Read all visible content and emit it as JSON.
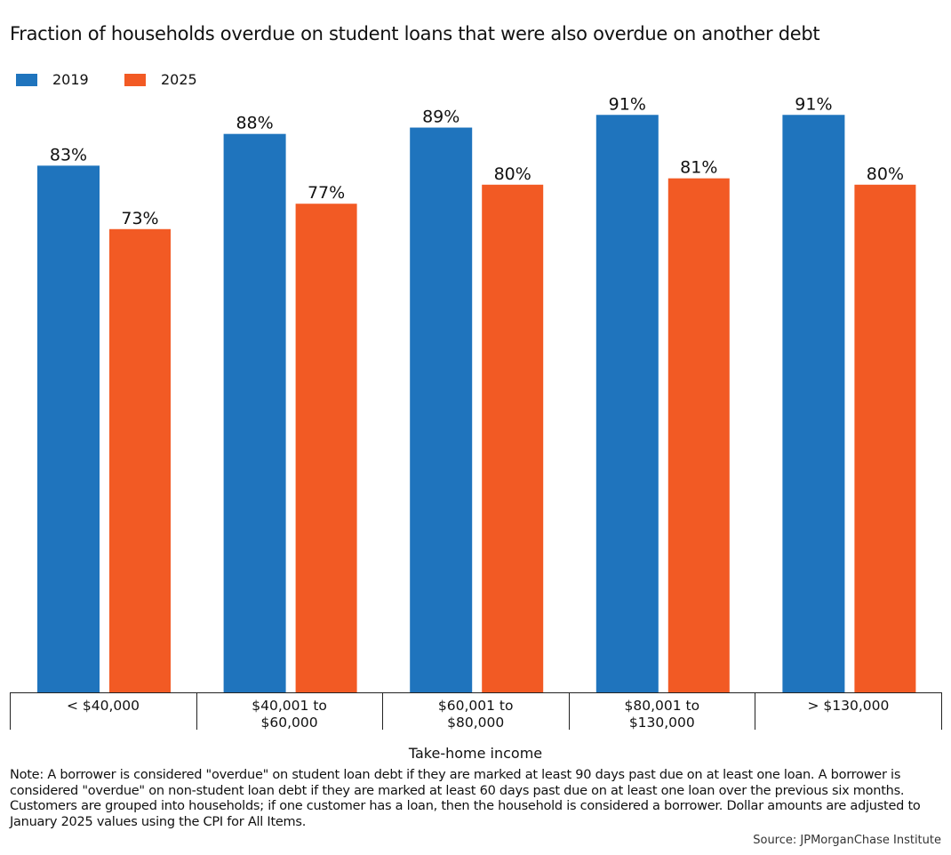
{
  "chart_data": {
    "type": "bar",
    "title": "Fraction of households overdue on student loans that were also overdue on another debt",
    "xlabel": "Take-home income",
    "ylabel": "",
    "ylim": [
      0,
      100
    ],
    "grid": false,
    "legend_placement": "top-left",
    "categories": [
      "< $40,000",
      "$40,001 to\n$60,000",
      "$60,001 to\n$80,000",
      "$80,001 to\n$130,000",
      "> $130,000"
    ],
    "series": [
      {
        "name": "2019",
        "color": "#1f74bd",
        "values": [
          83,
          88,
          89,
          91,
          91
        ],
        "labels": [
          "83%",
          "88%",
          "89%",
          "91%",
          "91%"
        ]
      },
      {
        "name": "2025",
        "color": "#f25a24",
        "values": [
          73,
          77,
          80,
          81,
          80
        ],
        "labels": [
          "73%",
          "77%",
          "80%",
          "81%",
          "80%"
        ]
      }
    ]
  },
  "note": "Note: A borrower is considered \"overdue\" on student loan debt if they are marked at least 90 days past due on at least one loan. A borrower is considered \"overdue\" on non-student loan debt if they are marked at least 60 days past due on at least one loan over the previous six months. Customers are grouped into households; if one customer has a loan, then the household is considered a borrower. Dollar amounts are adjusted to January 2025 values using the CPI for All Items.",
  "source": "Source: JPMorganChase Institute"
}
